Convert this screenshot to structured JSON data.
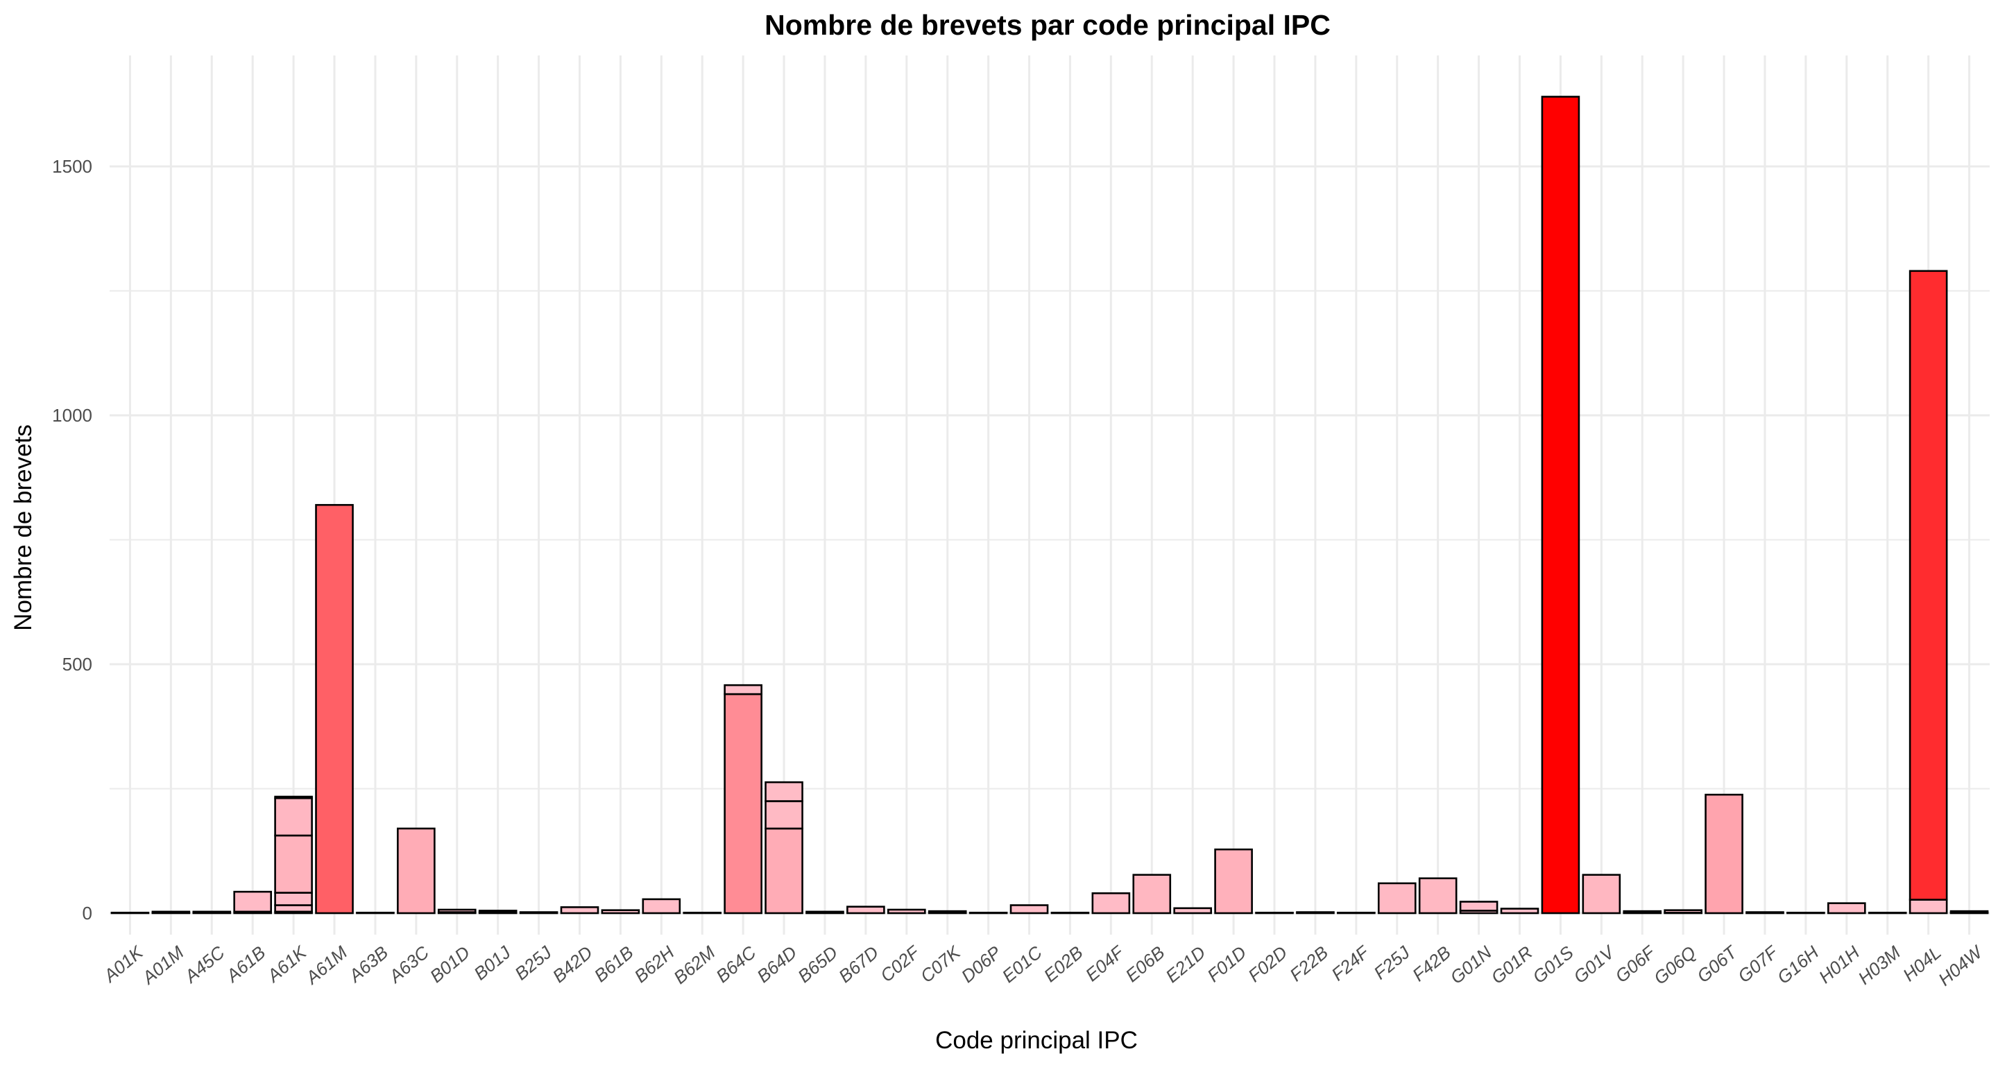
{
  "chart_data": {
    "type": "bar",
    "title": "Nombre de brevets par code principal IPC",
    "xlabel": "Code principal IPC",
    "ylabel": "Nombre de brevets",
    "ylim": [
      0,
      1680
    ],
    "yticks": [
      0,
      500,
      1000,
      1500
    ],
    "grid": true,
    "legend": "none",
    "categories": [
      "A01K",
      "A01M",
      "A45C",
      "A61B",
      "A61K",
      "A61M",
      "A63B",
      "A63C",
      "B01D",
      "B01J",
      "B25J",
      "B42D",
      "B61B",
      "B62H",
      "B62M",
      "B64C",
      "B64D",
      "B65D",
      "B67D",
      "C02F",
      "C07K",
      "D06P",
      "E01C",
      "E02B",
      "E04F",
      "E06B",
      "E21D",
      "F01D",
      "F02D",
      "F22B",
      "F24F",
      "F25J",
      "F42B",
      "G01N",
      "G01R",
      "G01S",
      "G01V",
      "G06F",
      "G06Q",
      "G06T",
      "G07F",
      "G16H",
      "H01H",
      "H03M",
      "H04L",
      "H04W"
    ],
    "stacks": [
      [
        1
      ],
      [
        1,
        2
      ],
      [
        1,
        2
      ],
      [
        3,
        40
      ],
      [
        3,
        13,
        25,
        115,
        75,
        3
      ],
      [
        820
      ],
      [
        1
      ],
      [
        170
      ],
      [
        2,
        5
      ],
      [
        2,
        3
      ],
      [
        2
      ],
      [
        12
      ],
      [
        6
      ],
      [
        28
      ],
      [
        1
      ],
      [
        440,
        18
      ],
      [
        170,
        55,
        38
      ],
      [
        3
      ],
      [
        13
      ],
      [
        7
      ],
      [
        1,
        3
      ],
      [
        1
      ],
      [
        16
      ],
      [
        1
      ],
      [
        40
      ],
      [
        77
      ],
      [
        10
      ],
      [
        128
      ],
      [
        1
      ],
      [
        2
      ],
      [
        1
      ],
      [
        60
      ],
      [
        70
      ],
      [
        5,
        18
      ],
      [
        9
      ],
      [
        1640
      ],
      [
        77
      ],
      [
        1,
        3
      ],
      [
        1,
        5
      ],
      [
        238
      ],
      [
        2
      ],
      [
        1
      ],
      [
        20
      ],
      [
        1
      ],
      [
        27,
        1263
      ],
      [
        1,
        3
      ]
    ],
    "totals": [
      1,
      3,
      3,
      43,
      234,
      820,
      1,
      170,
      7,
      5,
      2,
      12,
      6,
      28,
      1,
      458,
      263,
      3,
      13,
      7,
      4,
      1,
      16,
      1,
      40,
      77,
      10,
      128,
      1,
      2,
      1,
      60,
      70,
      23,
      9,
      1640,
      77,
      4,
      6,
      238,
      2,
      1,
      20,
      1,
      1290,
      4
    ],
    "color_scale": {
      "low": "#ffc0cb",
      "high": "#ff0000",
      "min": 0,
      "max": 1640
    },
    "bar_outline": "#000000"
  }
}
